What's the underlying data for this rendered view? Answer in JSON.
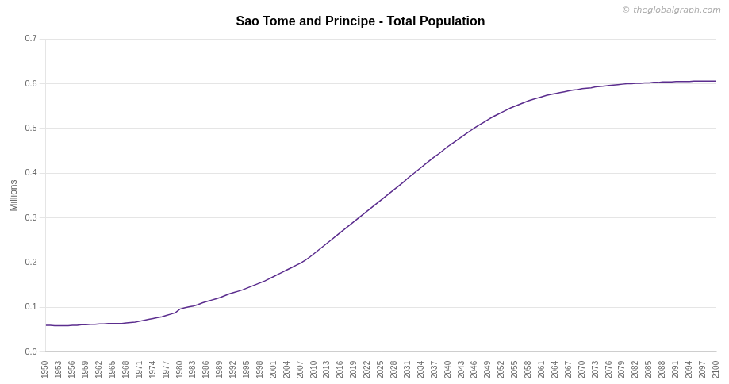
{
  "chart_data": {
    "type": "line",
    "title": "Sao Tome and Principe - Total Population",
    "ylabel": "Millions",
    "annotations": [
      "© theglobalgraph.com"
    ],
    "color": "#5B2D8E",
    "grid": "y",
    "x": [
      1950,
      1951,
      1952,
      1953,
      1954,
      1955,
      1956,
      1957,
      1958,
      1959,
      1960,
      1961,
      1962,
      1963,
      1964,
      1965,
      1966,
      1967,
      1968,
      1969,
      1970,
      1971,
      1972,
      1973,
      1974,
      1975,
      1976,
      1977,
      1978,
      1979,
      1980,
      1981,
      1982,
      1983,
      1984,
      1985,
      1986,
      1987,
      1988,
      1989,
      1990,
      1991,
      1992,
      1993,
      1994,
      1995,
      1996,
      1997,
      1998,
      1999,
      2000,
      2001,
      2002,
      2003,
      2004,
      2005,
      2006,
      2007,
      2008,
      2009,
      2010,
      2011,
      2012,
      2013,
      2014,
      2015,
      2016,
      2017,
      2018,
      2019,
      2020,
      2021,
      2022,
      2023,
      2024,
      2025,
      2026,
      2027,
      2028,
      2029,
      2030,
      2031,
      2032,
      2033,
      2034,
      2035,
      2036,
      2037,
      2038,
      2039,
      2040,
      2041,
      2042,
      2043,
      2044,
      2045,
      2046,
      2047,
      2048,
      2049,
      2050,
      2051,
      2052,
      2053,
      2054,
      2055,
      2056,
      2057,
      2058,
      2059,
      2060,
      2061,
      2062,
      2063,
      2064,
      2065,
      2066,
      2067,
      2068,
      2069,
      2070,
      2071,
      2072,
      2073,
      2074,
      2075,
      2076,
      2077,
      2078,
      2079,
      2080,
      2081,
      2082,
      2083,
      2084,
      2085,
      2086,
      2087,
      2088,
      2089,
      2090,
      2091,
      2092,
      2093,
      2094,
      2095,
      2096,
      2097,
      2098,
      2099,
      2100
    ],
    "values": [
      0.06,
      0.06,
      0.059,
      0.059,
      0.059,
      0.059,
      0.06,
      0.06,
      0.061,
      0.061,
      0.062,
      0.062,
      0.063,
      0.063,
      0.064,
      0.064,
      0.064,
      0.064,
      0.065,
      0.066,
      0.067,
      0.069,
      0.071,
      0.073,
      0.075,
      0.077,
      0.079,
      0.082,
      0.085,
      0.088,
      0.096,
      0.099,
      0.101,
      0.103,
      0.106,
      0.11,
      0.113,
      0.116,
      0.119,
      0.122,
      0.126,
      0.13,
      0.133,
      0.136,
      0.139,
      0.143,
      0.147,
      0.151,
      0.155,
      0.159,
      0.164,
      0.169,
      0.174,
      0.179,
      0.184,
      0.189,
      0.194,
      0.199,
      0.205,
      0.212,
      0.22,
      0.228,
      0.236,
      0.244,
      0.252,
      0.26,
      0.268,
      0.276,
      0.284,
      0.292,
      0.3,
      0.308,
      0.316,
      0.324,
      0.332,
      0.34,
      0.348,
      0.356,
      0.364,
      0.372,
      0.38,
      0.389,
      0.397,
      0.405,
      0.413,
      0.421,
      0.429,
      0.437,
      0.444,
      0.452,
      0.46,
      0.467,
      0.474,
      0.481,
      0.488,
      0.495,
      0.502,
      0.508,
      0.514,
      0.52,
      0.526,
      0.531,
      0.536,
      0.541,
      0.546,
      0.55,
      0.554,
      0.558,
      0.562,
      0.565,
      0.568,
      0.571,
      0.574,
      0.576,
      0.578,
      0.58,
      0.582,
      0.584,
      0.586,
      0.587,
      0.589,
      0.59,
      0.591,
      0.593,
      0.594,
      0.595,
      0.596,
      0.597,
      0.598,
      0.599,
      0.6,
      0.6,
      0.601,
      0.601,
      0.602,
      0.602,
      0.603,
      0.603,
      0.604,
      0.604,
      0.604,
      0.605,
      0.605,
      0.605,
      0.605,
      0.606,
      0.606,
      0.606,
      0.606,
      0.606,
      0.606
    ],
    "xlim": [
      1950,
      2100
    ],
    "xticks": [
      1950,
      1953,
      1956,
      1959,
      1962,
      1965,
      1968,
      1971,
      1974,
      1977,
      1980,
      1983,
      1986,
      1989,
      1992,
      1995,
      1998,
      2001,
      2004,
      2007,
      2010,
      2013,
      2016,
      2019,
      2022,
      2025,
      2028,
      2031,
      2034,
      2037,
      2040,
      2043,
      2046,
      2049,
      2052,
      2055,
      2058,
      2061,
      2064,
      2067,
      2070,
      2073,
      2076,
      2079,
      2082,
      2085,
      2088,
      2091,
      2094,
      2097,
      2100
    ],
    "ylim": [
      0,
      0.7
    ],
    "yticks": [
      {
        "value": 0,
        "label": "0.0"
      },
      0.1,
      0.2,
      0.3,
      0.4,
      0.5,
      0.6,
      0.7
    ]
  }
}
